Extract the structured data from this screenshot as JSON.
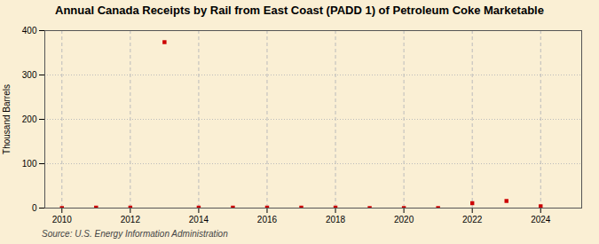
{
  "chart_data": {
    "type": "scatter",
    "title": "Annual Canada Receipts by Rail from East Coast (PADD 1) of Petroleum Coke Marketable",
    "ylabel": "Thousand Barrels",
    "source": "Source: U.S. Energy Information Administration",
    "x": [
      2010,
      2011,
      2012,
      2013,
      2014,
      2015,
      2016,
      2017,
      2018,
      2019,
      2020,
      2021,
      2022,
      2023,
      2024
    ],
    "values": [
      0,
      1,
      1,
      374,
      1,
      1,
      1,
      1,
      1,
      0,
      0,
      0,
      11,
      16,
      4
    ],
    "color": "#cc0000",
    "marker": "square",
    "xlim": [
      2009.5,
      2025.2
    ],
    "ylim": [
      0,
      400
    ],
    "xticks": [
      2010,
      2012,
      2014,
      2016,
      2018,
      2020,
      2022,
      2024
    ],
    "yticks": [
      0,
      100,
      200,
      300,
      400
    ],
    "grid": true
  }
}
